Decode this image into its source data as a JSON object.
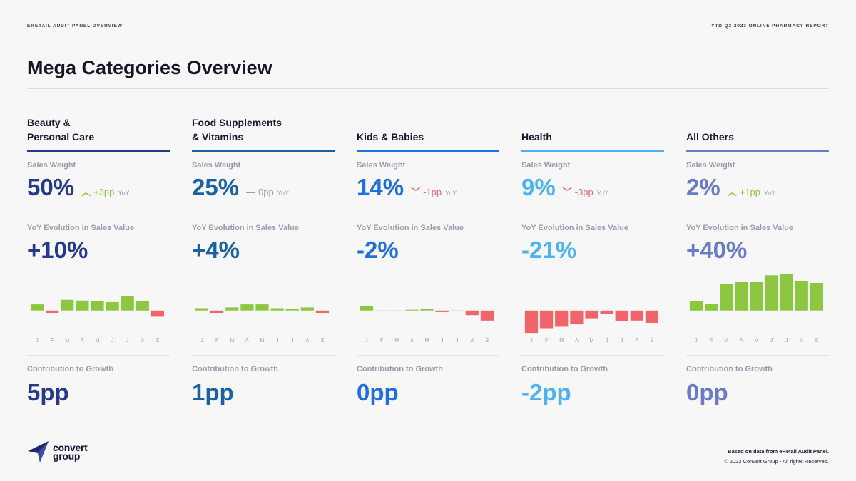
{
  "header": {
    "left": "ERETAIL AUDIT PANEL OVERVIEW",
    "right": "YTD Q3 2023 ONLINE PHARMACY REPORT"
  },
  "title": "Mega Categories Overview",
  "labels": {
    "sales_weight": "Sales Weight",
    "yoy_evolution": "YoY Evolution in Sales Value",
    "contribution": "Contribution to Growth",
    "yoy_suffix": "YoY"
  },
  "colors": {
    "positive": "#8dc63f",
    "negative": "#f0646a",
    "neutral": "#9a9cad",
    "axis_label": "#9a9cad"
  },
  "categories": [
    {
      "name": "Beauty &\nPersonal Care",
      "color": "#253a8c",
      "sales_weight": "50%",
      "sw_change": "+3pp",
      "sw_direction": "up",
      "yoy_evolution": "+10%",
      "contribution": "5pp"
    },
    {
      "name": "Food Supplements\n& Vitamins",
      "color": "#1a63a3",
      "sales_weight": "25%",
      "sw_change": "0pp",
      "sw_direction": "flat",
      "yoy_evolution": "+4%",
      "contribution": "1pp"
    },
    {
      "name": "Kids & Babies",
      "color": "#1f6fe0",
      "sales_weight": "14%",
      "sw_change": "-1pp",
      "sw_direction": "down",
      "yoy_evolution": "-2%",
      "contribution": "0pp"
    },
    {
      "name": "Health",
      "color": "#4cb3f0",
      "sales_weight": "9%",
      "sw_change": "-3pp",
      "sw_direction": "down",
      "yoy_evolution": "-21%",
      "contribution": "-2pp"
    },
    {
      "name": "All Others",
      "color": "#6a7bc7",
      "sales_weight": "2%",
      "sw_change": "+1pp",
      "sw_direction": "up",
      "yoy_evolution": "+40%",
      "contribution": "0pp"
    }
  ],
  "chart_data": [
    {
      "type": "bar",
      "categories": [
        "J",
        "F",
        "M",
        "A",
        "M",
        "J",
        "J",
        "A",
        "S"
      ],
      "values": [
        8,
        -3,
        14,
        13,
        12,
        11,
        19,
        12,
        -8
      ],
      "ylim": [
        -30,
        50
      ]
    },
    {
      "type": "bar",
      "categories": [
        "J",
        "F",
        "M",
        "A",
        "M",
        "J",
        "J",
        "A",
        "S"
      ],
      "values": [
        3,
        -3,
        4,
        8,
        8,
        3,
        2,
        4,
        -3
      ],
      "ylim": [
        -30,
        50
      ]
    },
    {
      "type": "bar",
      "categories": [
        "J",
        "F",
        "M",
        "A",
        "M",
        "J",
        "J",
        "A",
        "S"
      ],
      "values": [
        6,
        -1,
        0,
        1,
        2,
        -2,
        -1,
        -6,
        -13
      ],
      "ylim": [
        -30,
        50
      ]
    },
    {
      "type": "bar",
      "categories": [
        "J",
        "F",
        "M",
        "A",
        "M",
        "J",
        "J",
        "A",
        "S"
      ],
      "values": [
        -30,
        -23,
        -21,
        -18,
        -10,
        -4,
        -14,
        -13,
        -16
      ],
      "ylim": [
        -30,
        50
      ]
    },
    {
      "type": "bar",
      "categories": [
        "J",
        "F",
        "M",
        "A",
        "M",
        "J",
        "J",
        "A",
        "S"
      ],
      "values": [
        12,
        9,
        35,
        37,
        37,
        46,
        48,
        38,
        36
      ],
      "ylim": [
        -30,
        50
      ]
    }
  ],
  "footer": {
    "source": "Based on data from eRetail Audit Panel.",
    "copyright": "© 2023 Convert Group - All rights Reserved."
  },
  "logo": {
    "line1": "convert",
    "line2": "group",
    "icon": "paper-plane-icon"
  }
}
